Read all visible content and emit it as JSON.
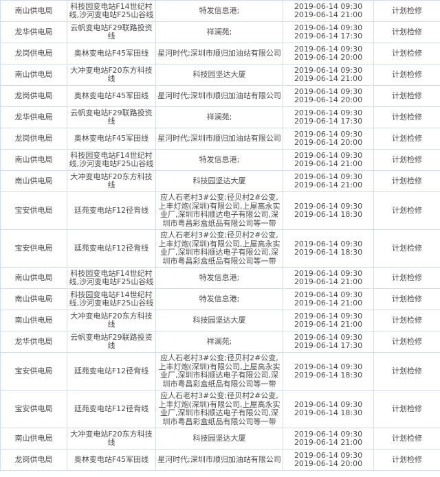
{
  "table": {
    "rows": [
      [
        "南山供电局",
        "科技园变电站F14世纪村线,沙河变电站F25山谷线",
        "特发信息港;",
        "2019-06-14 09:30",
        "2019-06-14 21:00",
        "计划检修"
      ],
      [
        "龙华供电局",
        "云帆变电站F29联路投资线",
        "祥澜苑;",
        "2019-06-14 09:30",
        "2019-06-14 17:30",
        "计划检修"
      ],
      [
        "龙岗供电局",
        "奥林变电站F45军田线",
        "星河时代;深圳市顺归加油站有限公司",
        "2019-06-14 09:30",
        "2019-06-14 20:00",
        "计划检修"
      ],
      [
        "南山供电局",
        "大冲变电站F20东方科技线",
        "科技园坚达大厦",
        "2019-06-14 09:30",
        "2019-06-14 21:00",
        "计划检修"
      ],
      [
        "龙岗供电局",
        "奥林变电站F45军田线",
        "星河时代;深圳市顺归加油站有限公司",
        "2019-06-14 09:30",
        "2019-06-14 20:00",
        "计划检修"
      ],
      [
        "龙华供电局",
        "云帆变电站F29联路投资线",
        "祥澜苑;",
        "2019-06-14 09:30",
        "2019-06-14 17:30",
        "计划检修"
      ],
      [
        "龙岗供电局",
        "奥林变电站F45军田线",
        "星河时代;深圳市顺归加油站有限公司",
        "2019-06-14 09:30",
        "2019-06-14 20:00",
        "计划检修"
      ],
      [
        "南山供电局",
        "科技园变电站F14世纪村线,沙河变电站F25山谷线",
        "特发信息港;",
        "2019-06-14 09:30",
        "2019-06-14 21:00",
        "计划检修"
      ],
      [
        "南山供电局",
        "大冲变电站F20东方科技线",
        "科技园坚达大厦",
        "2019-06-14 09:30",
        "2019-06-14 21:00",
        "计划检修"
      ],
      [
        "宝安供电局",
        "廷苑变电站F12径背线",
        "应人石老村3#公变;径贝村2#公变,上丰灯炮(深圳)有限公司,上屋高永实业厂,深圳市科顺达电子有限公司,深圳市粤昌彩盒纸品有限公司等一带",
        "2019-06-14 09:30",
        "2019-06-14 18:30",
        "计划检修"
      ],
      [
        "宝安供电局",
        "廷苑变电站F12径背线",
        "应人石老村3#公变;径贝村2#公变,上丰灯炮(深圳)有限公司,上屋高永实业厂,深圳市科顺达电子有限公司,深圳市粤昌彩盒纸品有限公司等一带",
        "2019-06-14 09:30",
        "2019-06-14 18:30",
        "计划检修"
      ],
      [
        "南山供电局",
        "科技园变电站F14世纪村线,沙河变电站F25山谷线",
        "特发信息港;",
        "2019-06-14 09:30",
        "2019-06-14 21:00",
        "计划检修"
      ],
      [
        "南山供电局",
        "科技园变电站F14世纪村线,沙河变电站F25山谷线",
        "特发信息港;",
        "2019-06-14 09:30",
        "2019-06-14 21:00",
        "计划检修"
      ],
      [
        "南山供电局",
        "大冲变电站F20东方科技线",
        "科技园坚达大厦",
        "2019-06-14 09:30",
        "2019-06-14 21:00",
        "计划检修"
      ],
      [
        "龙华供电局",
        "云帆变电站F29联路投资线",
        "祥澜苑;",
        "2019-06-14 09:30",
        "2019-06-14 17:30",
        "计划检修"
      ],
      [
        "宝安供电局",
        "廷苑变电站F12径背线",
        "应人石老村3#公变;径贝村2#公变,上丰灯炮(深圳)有限公司,上屋高永实业厂,深圳市科顺达电子有限公司,深圳市粤昌彩盒纸品有限公司等一带",
        "2019-06-14 09:30",
        "2019-06-14 18:30",
        "计划检修"
      ],
      [
        "宝安供电局",
        "廷苑变电站F12径背线",
        "应人石老村3#公变;径贝村2#公变,上丰灯炮(深圳)有限公司,上屋高永实业厂,深圳市科顺达电子有限公司,深圳市粤昌彩盒纸品有限公司等一带",
        "2019-06-14 09:30",
        "2019-06-14 18:30",
        "计划检修"
      ],
      [
        "南山供电局",
        "大冲变电站F20东方科技线",
        "科技园坚达大厦",
        "2019-06-14 09:30",
        "2019-06-14 21:00",
        "计划检修"
      ],
      [
        "龙岗供电局",
        "奥林变电站F45军田线",
        "星河时代;深圳市顺归加油站有限公司",
        "2019-06-14 09:30",
        "2019-06-14 20:00",
        "计划检修"
      ]
    ]
  }
}
